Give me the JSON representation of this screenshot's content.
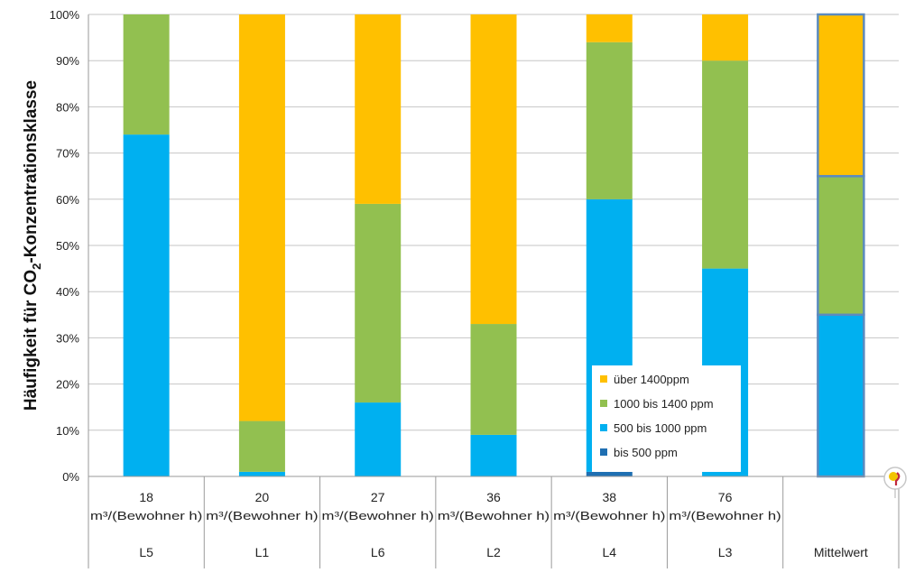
{
  "chart_data": {
    "type": "bar",
    "stacked": true,
    "ylabel_parts": [
      "Häufigkeit für CO",
      "2",
      "-Konzentrationsklasse"
    ],
    "ylim": [
      0,
      100
    ],
    "y_ticks": [
      "0%",
      "10%",
      "20%",
      "30%",
      "40%",
      "50%",
      "60%",
      "70%",
      "80%",
      "90%",
      "100%"
    ],
    "grid": true,
    "categories": [
      {
        "rate": "18",
        "unit": "m³/(Bewohner h)",
        "label": "L5"
      },
      {
        "rate": "20",
        "unit": "m³/(Bewohner h)",
        "label": "L1"
      },
      {
        "rate": "27",
        "unit": "m³/(Bewohner h)",
        "label": "L6"
      },
      {
        "rate": "36",
        "unit": "m³/(Bewohner h)",
        "label": "L2"
      },
      {
        "rate": "38",
        "unit": "m³/(Bewohner h)",
        "label": "L4"
      },
      {
        "rate": "76",
        "unit": "m³/(Bewohner h)",
        "label": "L3"
      },
      {
        "rate": "",
        "unit": "",
        "label": "Mittelwert"
      }
    ],
    "series": [
      {
        "name": "bis 500 ppm",
        "color": "#1f6fb2",
        "values": [
          0,
          0,
          0,
          0,
          1,
          0,
          0
        ]
      },
      {
        "name": "500 bis 1000 ppm",
        "color": "#00b0f0",
        "values": [
          74,
          1,
          16,
          9,
          59,
          45,
          35
        ]
      },
      {
        "name": "1000 bis 1400 ppm",
        "color": "#92c050",
        "values": [
          26,
          11,
          43,
          24,
          34,
          45,
          30
        ]
      },
      {
        "name": "über 1400ppm",
        "color": "#ffc000",
        "values": [
          0,
          88,
          41,
          67,
          6,
          10,
          35
        ]
      }
    ],
    "legend_order": [
      3,
      2,
      1,
      0
    ],
    "legend_position": "lower-right",
    "highlight_category": "Mittelwert",
    "highlight_color": "#5b8bbf"
  }
}
